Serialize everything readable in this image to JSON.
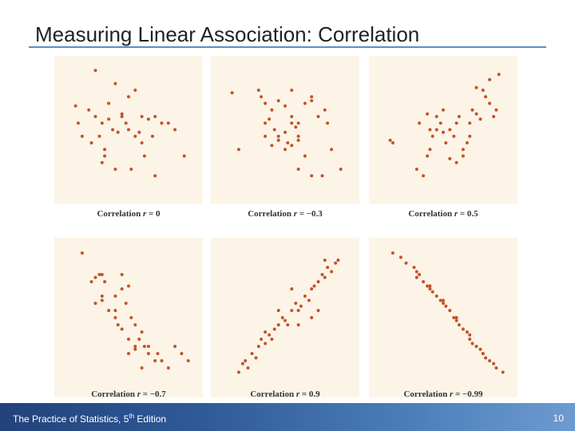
{
  "title": "Measuring Linear Association: Correlation",
  "footer": {
    "book_prefix": "The Practice of Statistics, 5",
    "book_sup": "th",
    "book_suffix": " Edition",
    "page_number": "10"
  },
  "colors": {
    "dot": "#c2532b",
    "panel_bg": "#fcf4e6",
    "rule": "#5b8fc4",
    "footer": "#2f5a98"
  },
  "chart_data": [
    {
      "type": "scatter",
      "caption_prefix": "Correlation ",
      "caption_var": "r",
      "caption_value": " = 0",
      "r": 0,
      "x": [
        0.25,
        0.4,
        0.55,
        0.5,
        0.35,
        0.2,
        0.45,
        0.6,
        0.7,
        0.65,
        0.3,
        0.38,
        0.42,
        0.5,
        0.48,
        0.55,
        0.28,
        0.22,
        0.32,
        0.6,
        0.68,
        0.75,
        0.8,
        0.62,
        0.3,
        0.15,
        0.12,
        0.1,
        0.45,
        0.58,
        0.35,
        0.25,
        0.32,
        0.4,
        0.52,
        0.7,
        0.85,
        0.92
      ],
      "y": [
        0.95,
        0.85,
        0.8,
        0.75,
        0.7,
        0.65,
        0.62,
        0.6,
        0.6,
        0.58,
        0.55,
        0.5,
        0.48,
        0.5,
        0.55,
        0.45,
        0.45,
        0.4,
        0.35,
        0.4,
        0.45,
        0.55,
        0.55,
        0.3,
        0.25,
        0.45,
        0.55,
        0.68,
        0.6,
        0.48,
        0.58,
        0.6,
        0.3,
        0.2,
        0.2,
        0.15,
        0.5,
        0.3
      ]
    },
    {
      "type": "scatter",
      "caption_prefix": "Correlation ",
      "caption_var": "r",
      "caption_value": " = −0.3",
      "r": -0.3,
      "x": [
        0.1,
        0.15,
        0.3,
        0.32,
        0.35,
        0.4,
        0.45,
        0.5,
        0.55,
        0.6,
        0.35,
        0.38,
        0.42,
        0.45,
        0.5,
        0.52,
        0.55,
        0.58,
        0.6,
        0.65,
        0.7,
        0.35,
        0.4,
        0.45,
        0.5,
        0.55,
        0.6,
        0.65,
        0.7,
        0.75,
        0.8,
        0.82,
        0.6,
        0.7,
        0.78,
        0.55,
        0.85,
        0.92
      ],
      "y": [
        0.78,
        0.35,
        0.8,
        0.75,
        0.7,
        0.65,
        0.72,
        0.68,
        0.6,
        0.55,
        0.55,
        0.58,
        0.5,
        0.45,
        0.48,
        0.4,
        0.55,
        0.52,
        0.45,
        0.7,
        0.72,
        0.45,
        0.38,
        0.42,
        0.35,
        0.38,
        0.42,
        0.3,
        0.75,
        0.6,
        0.65,
        0.55,
        0.2,
        0.15,
        0.15,
        0.8,
        0.35,
        0.2
      ]
    },
    {
      "type": "scatter",
      "caption_prefix": "Correlation ",
      "caption_var": "r",
      "caption_value": " = 0.5",
      "r": 0.5,
      "x": [
        0.1,
        0.12,
        0.3,
        0.35,
        0.38,
        0.4,
        0.42,
        0.45,
        0.48,
        0.5,
        0.52,
        0.55,
        0.58,
        0.6,
        0.62,
        0.65,
        0.68,
        0.7,
        0.72,
        0.75,
        0.78,
        0.8,
        0.82,
        0.85,
        0.88,
        0.9,
        0.4,
        0.45,
        0.5,
        0.55,
        0.6,
        0.65,
        0.32,
        0.38,
        0.7,
        0.75,
        0.85,
        0.92
      ],
      "y": [
        0.42,
        0.4,
        0.2,
        0.15,
        0.3,
        0.35,
        0.45,
        0.5,
        0.55,
        0.48,
        0.4,
        0.5,
        0.45,
        0.55,
        0.6,
        0.35,
        0.4,
        0.55,
        0.65,
        0.62,
        0.58,
        0.8,
        0.75,
        0.7,
        0.6,
        0.65,
        0.5,
        0.6,
        0.65,
        0.28,
        0.25,
        0.3,
        0.55,
        0.62,
        0.45,
        0.82,
        0.88,
        0.92
      ]
    },
    {
      "type": "scatter",
      "caption_prefix": "Correlation ",
      "caption_var": "r",
      "caption_value": " = −0.7",
      "r": -0.7,
      "x": [
        0.15,
        0.22,
        0.25,
        0.28,
        0.3,
        0.32,
        0.25,
        0.3,
        0.35,
        0.4,
        0.45,
        0.5,
        0.48,
        0.52,
        0.55,
        0.4,
        0.42,
        0.45,
        0.5,
        0.55,
        0.58,
        0.6,
        0.62,
        0.65,
        0.7,
        0.72,
        0.75,
        0.5,
        0.55,
        0.6,
        0.65,
        0.8,
        0.85,
        0.9,
        0.95,
        0.4,
        0.45,
        0.3
      ],
      "y": [
        0.95,
        0.75,
        0.78,
        0.8,
        0.8,
        0.75,
        0.6,
        0.65,
        0.55,
        0.65,
        0.7,
        0.72,
        0.6,
        0.5,
        0.45,
        0.55,
        0.45,
        0.42,
        0.35,
        0.3,
        0.35,
        0.4,
        0.3,
        0.25,
        0.2,
        0.25,
        0.2,
        0.25,
        0.28,
        0.15,
        0.3,
        0.15,
        0.3,
        0.25,
        0.2,
        0.5,
        0.8,
        0.62
      ]
    },
    {
      "type": "scatter",
      "caption_prefix": "Correlation ",
      "caption_var": "r",
      "caption_value": " = 0.9",
      "r": 0.9,
      "x": [
        0.15,
        0.18,
        0.2,
        0.22,
        0.25,
        0.28,
        0.3,
        0.32,
        0.35,
        0.38,
        0.4,
        0.42,
        0.45,
        0.48,
        0.5,
        0.52,
        0.55,
        0.58,
        0.6,
        0.62,
        0.65,
        0.68,
        0.7,
        0.72,
        0.75,
        0.78,
        0.8,
        0.82,
        0.85,
        0.88,
        0.9,
        0.35,
        0.45,
        0.55,
        0.6,
        0.7,
        0.75,
        0.8
      ],
      "y": [
        0.12,
        0.18,
        0.2,
        0.15,
        0.25,
        0.22,
        0.3,
        0.35,
        0.32,
        0.38,
        0.35,
        0.42,
        0.45,
        0.5,
        0.48,
        0.45,
        0.55,
        0.6,
        0.55,
        0.58,
        0.65,
        0.62,
        0.7,
        0.72,
        0.75,
        0.8,
        0.78,
        0.85,
        0.82,
        0.88,
        0.9,
        0.4,
        0.55,
        0.7,
        0.45,
        0.5,
        0.55,
        0.9
      ]
    },
    {
      "type": "scatter",
      "caption_prefix": "Correlation ",
      "caption_var": "r",
      "caption_value": " = −0.99",
      "r": -0.99,
      "x": [
        0.12,
        0.18,
        0.22,
        0.28,
        0.3,
        0.32,
        0.35,
        0.38,
        0.4,
        0.42,
        0.45,
        0.48,
        0.5,
        0.52,
        0.55,
        0.58,
        0.6,
        0.62,
        0.65,
        0.68,
        0.7,
        0.72,
        0.75,
        0.78,
        0.8,
        0.82,
        0.85,
        0.88,
        0.9,
        0.95,
        0.3,
        0.4,
        0.5,
        0.6,
        0.7,
        0.8
      ],
      "y": [
        0.95,
        0.92,
        0.88,
        0.85,
        0.82,
        0.8,
        0.75,
        0.72,
        0.7,
        0.68,
        0.65,
        0.62,
        0.6,
        0.58,
        0.55,
        0.5,
        0.48,
        0.45,
        0.42,
        0.4,
        0.35,
        0.32,
        0.3,
        0.28,
        0.25,
        0.22,
        0.2,
        0.18,
        0.15,
        0.12,
        0.78,
        0.72,
        0.62,
        0.5,
        0.38,
        0.25
      ]
    }
  ]
}
